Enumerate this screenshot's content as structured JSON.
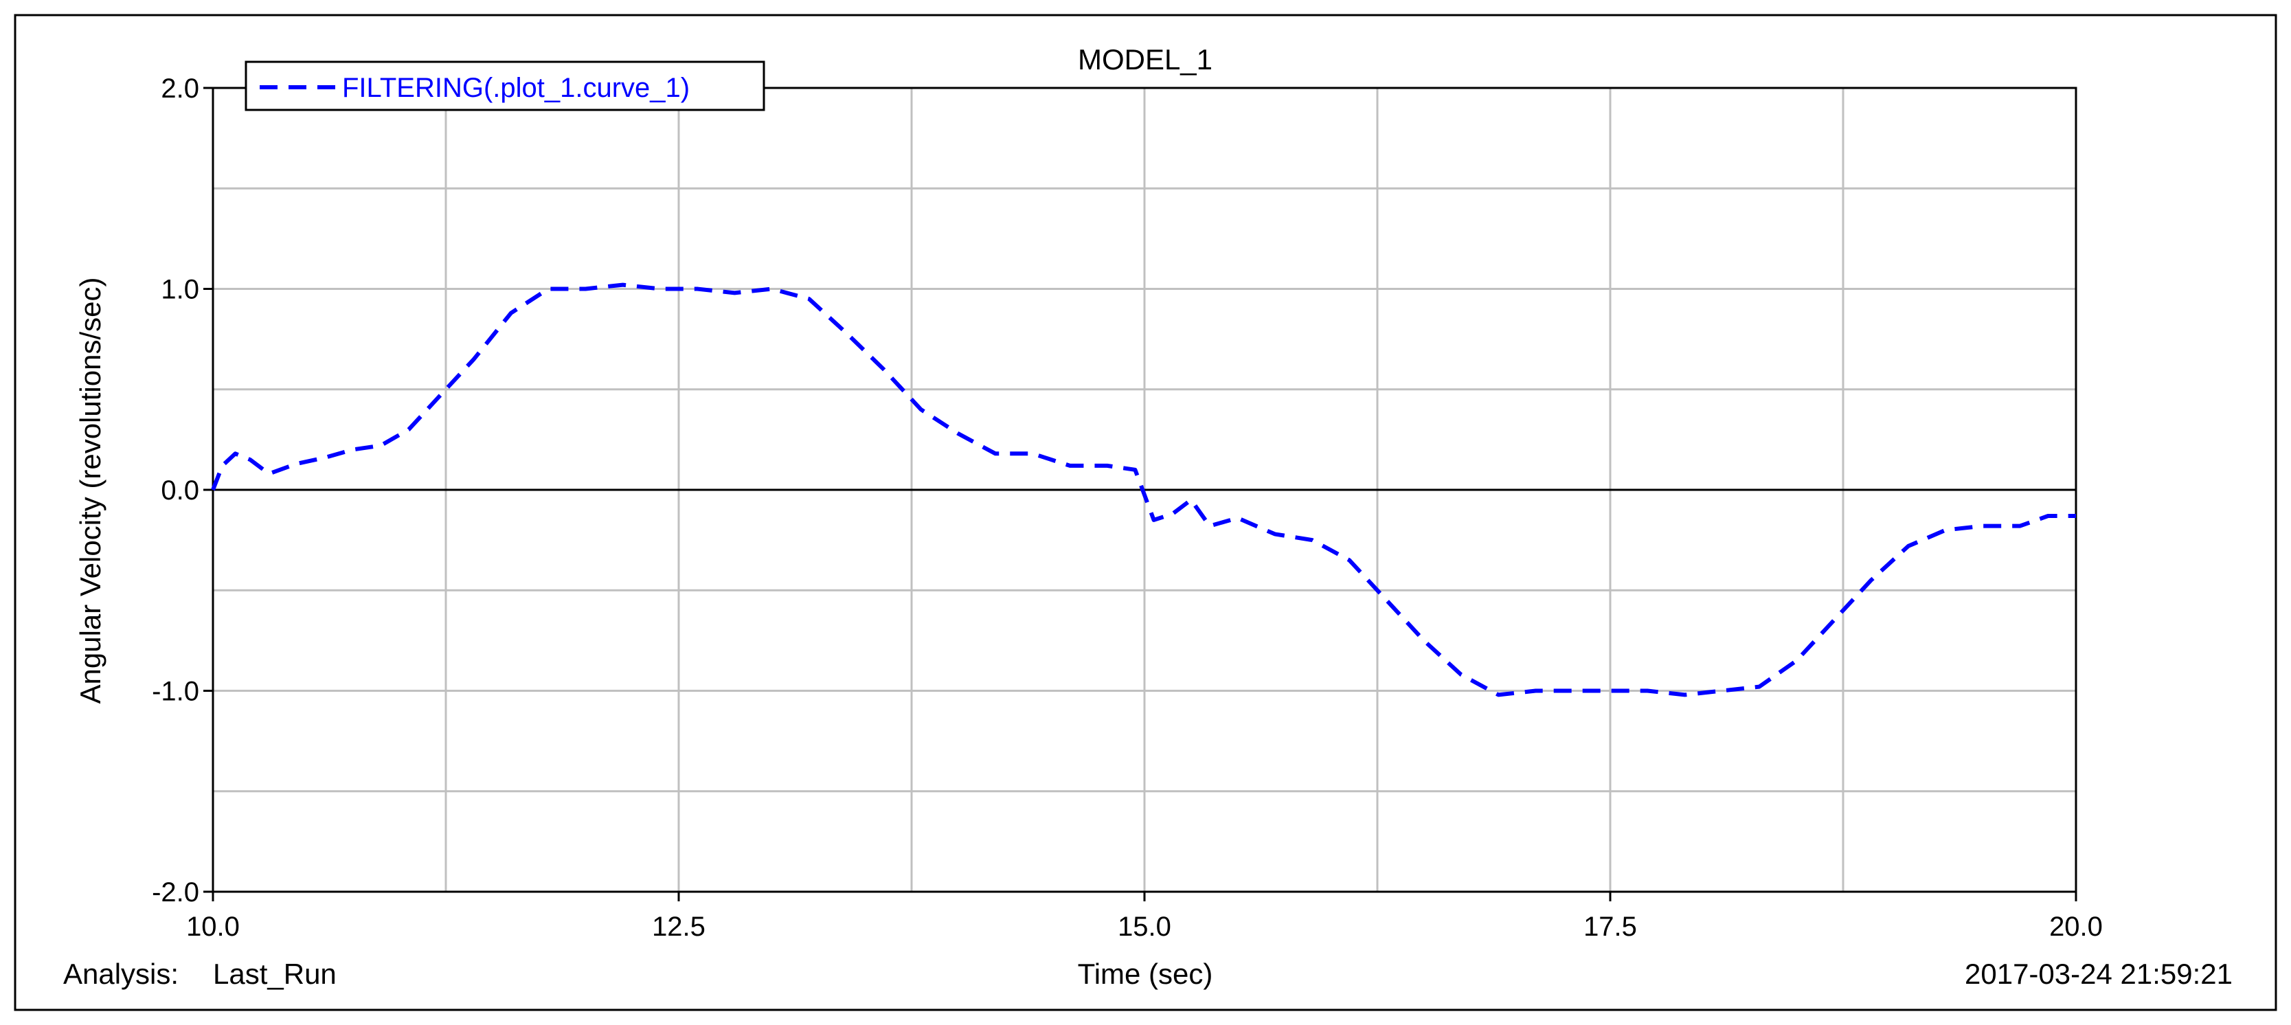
{
  "chart_data": {
    "type": "line",
    "title": "MODEL_1",
    "xlabel": "Time (sec)",
    "ylabel": "Angular Velocity (revolutions/sec)",
    "xlim": [
      10.0,
      20.0
    ],
    "ylim": [
      -2.0,
      2.0
    ],
    "x_ticks": [
      "10.0",
      "12.5",
      "15.0",
      "17.5",
      "20.0"
    ],
    "y_ticks": [
      "2.0",
      "1.0",
      "0.0",
      "-1.0",
      "-2.0"
    ],
    "x_gridlines": [
      10.0,
      11.25,
      12.5,
      13.75,
      15.0,
      16.25,
      17.5,
      18.75,
      20.0
    ],
    "y_gridlines": [
      -2.0,
      -1.5,
      -1.0,
      -0.5,
      0.0,
      0.5,
      1.0,
      1.5,
      2.0
    ],
    "grid": true,
    "legend_position": "top-left",
    "analysis_label": "Analysis:",
    "analysis_value": "Last_Run",
    "timestamp": "2017-03-24 21:59:21",
    "series": [
      {
        "name": "FILTERING(.plot_1.curve_1)",
        "color": "#0000ff",
        "style": "dashed",
        "x": [
          10.0,
          10.05,
          10.12,
          10.2,
          10.3,
          10.45,
          10.6,
          10.75,
          10.9,
          11.05,
          11.2,
          11.4,
          11.6,
          11.8,
          12.0,
          12.2,
          12.4,
          12.6,
          12.8,
          13.0,
          13.2,
          13.4,
          13.6,
          13.8,
          14.0,
          14.2,
          14.4,
          14.6,
          14.8,
          14.95,
          15.05,
          15.15,
          15.25,
          15.35,
          15.5,
          15.7,
          15.9,
          16.1,
          16.3,
          16.5,
          16.7,
          16.9,
          17.1,
          17.3,
          17.5,
          17.7,
          17.9,
          18.1,
          18.3,
          18.5,
          18.7,
          18.9,
          19.1,
          19.3,
          19.5,
          19.7,
          19.85,
          20.0
        ],
        "y": [
          0.0,
          0.12,
          0.18,
          0.15,
          0.08,
          0.13,
          0.16,
          0.2,
          0.22,
          0.3,
          0.45,
          0.65,
          0.88,
          1.0,
          1.0,
          1.02,
          1.0,
          1.0,
          0.98,
          1.0,
          0.95,
          0.78,
          0.6,
          0.4,
          0.28,
          0.18,
          0.18,
          0.12,
          0.12,
          0.1,
          -0.15,
          -0.12,
          -0.05,
          -0.18,
          -0.14,
          -0.22,
          -0.25,
          -0.35,
          -0.55,
          -0.75,
          -0.92,
          -1.02,
          -1.0,
          -1.0,
          -1.0,
          -1.0,
          -1.02,
          -1.0,
          -0.98,
          -0.85,
          -0.65,
          -0.45,
          -0.28,
          -0.2,
          -0.18,
          -0.18,
          -0.13,
          -0.13
        ]
      }
    ]
  }
}
